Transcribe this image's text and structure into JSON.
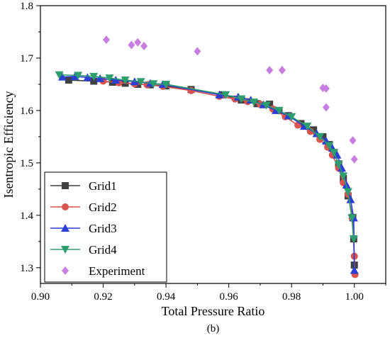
{
  "chart_data": {
    "type": "line",
    "title": "",
    "xlabel": "Total Pressure Ratio",
    "ylabel": "Isentropic Efficiency",
    "xlim": [
      0.9,
      1.01
    ],
    "ylim": [
      1.27,
      1.8
    ],
    "xticks": [
      "0.90",
      "0.92",
      "0.94",
      "0.96",
      "0.98",
      "1.00"
    ],
    "yticks": [
      "1.3",
      "1.4",
      "1.5",
      "1.6",
      "1.7",
      "1.8"
    ],
    "caption": "(b)",
    "legend_position": "bottom-left",
    "grid": false,
    "series": [
      {
        "name": "Grid1",
        "color": "#404040",
        "marker": "square",
        "x": [
          0.909,
          0.917,
          0.923,
          0.927,
          0.931,
          0.935,
          0.94,
          0.948,
          0.958,
          0.964,
          0.969,
          0.973,
          0.976,
          0.979,
          0.983,
          0.987,
          0.99,
          0.992,
          0.9935,
          0.995,
          0.9965,
          0.998,
          0.9995,
          0.9998,
          1.0
        ],
        "y": [
          1.658,
          1.656,
          1.654,
          1.652,
          1.65,
          1.649,
          1.647,
          1.64,
          1.63,
          1.62,
          1.613,
          1.612,
          1.6,
          1.59,
          1.575,
          1.563,
          1.55,
          1.535,
          1.518,
          1.498,
          1.47,
          1.437,
          1.396,
          1.355,
          1.305
        ]
      },
      {
        "name": "Grid2",
        "color": "#d9534f",
        "marker": "circle",
        "x": [
          0.92,
          0.925,
          0.93,
          0.934,
          0.939,
          0.948,
          0.957,
          0.962,
          0.966,
          0.97,
          0.974,
          0.978,
          0.982,
          0.986,
          0.989,
          0.9915,
          0.993,
          0.995,
          0.9965,
          0.998,
          0.9993,
          1.0,
          1.0002
        ],
        "y": [
          1.656,
          1.653,
          1.651,
          1.649,
          1.646,
          1.638,
          1.627,
          1.622,
          1.617,
          1.612,
          1.603,
          1.588,
          1.572,
          1.56,
          1.545,
          1.53,
          1.515,
          1.49,
          1.462,
          1.44,
          1.395,
          1.322,
          1.287
        ]
      },
      {
        "name": "Grid3",
        "color": "#2b3fd4",
        "marker": "triangle-up",
        "x": [
          0.907,
          0.911,
          0.915,
          0.919,
          0.924,
          0.93,
          0.935,
          0.939,
          0.957,
          0.963,
          0.967,
          0.971,
          0.975,
          0.979,
          0.984,
          0.988,
          0.991,
          0.993,
          0.9945,
          0.996,
          0.9975,
          0.9988,
          0.9998,
          1.0
        ],
        "y": [
          1.664,
          1.665,
          1.663,
          1.661,
          1.658,
          1.655,
          1.652,
          1.65,
          1.63,
          1.626,
          1.62,
          1.611,
          1.6,
          1.59,
          1.57,
          1.556,
          1.542,
          1.528,
          1.515,
          1.49,
          1.458,
          1.43,
          1.395,
          1.295
        ]
      },
      {
        "name": "Grid4",
        "color": "#2e9e6e",
        "marker": "triangle-down",
        "x": [
          0.906,
          0.912,
          0.917,
          0.922,
          0.927,
          0.932,
          0.936,
          0.94,
          0.959,
          0.964,
          0.968,
          0.972,
          0.976,
          0.98,
          0.985,
          0.989,
          0.992,
          0.9935,
          0.995,
          0.9965,
          0.998,
          0.9992,
          0.9998
        ],
        "y": [
          1.668,
          1.667,
          1.665,
          1.662,
          1.658,
          1.655,
          1.651,
          1.65,
          1.63,
          1.622,
          1.616,
          1.61,
          1.6,
          1.588,
          1.57,
          1.55,
          1.533,
          1.52,
          1.497,
          1.475,
          1.445,
          1.395,
          1.355
        ]
      },
      {
        "name": "Experiment",
        "color": "#c77ee0",
        "marker": "diamond",
        "line": false,
        "x": [
          0.921,
          0.929,
          0.931,
          0.933,
          0.95,
          0.973,
          0.977,
          0.99,
          0.991,
          0.991,
          0.9995,
          1.0
        ],
        "y": [
          1.735,
          1.725,
          1.73,
          1.723,
          1.713,
          1.677,
          1.677,
          1.643,
          1.642,
          1.606,
          1.543,
          1.507
        ]
      }
    ]
  }
}
